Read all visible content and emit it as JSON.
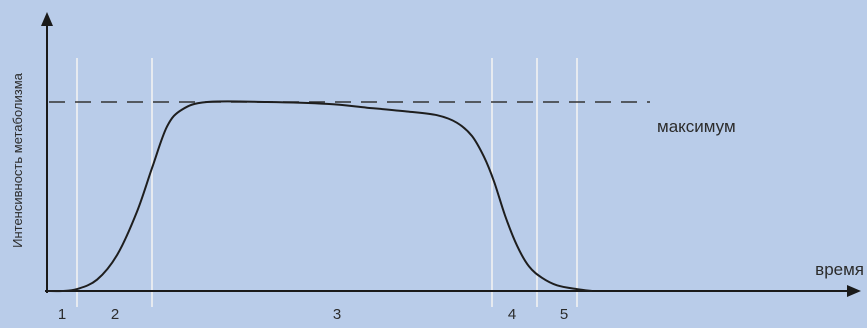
{
  "chart_data": {
    "type": "line",
    "title": "",
    "ylabel": "Интенсивность метаболизма",
    "xlabel": "время",
    "xlim": [
      0,
      560
    ],
    "ylim": [
      0,
      1
    ],
    "max_line": {
      "y": 1.0,
      "label": "максимум"
    },
    "phase_boundaries": [
      30,
      105,
      445,
      490,
      530
    ],
    "phases": [
      {
        "label": "1",
        "x": 15
      },
      {
        "label": "2",
        "x": 68
      },
      {
        "label": "3",
        "x": 290
      },
      {
        "label": "4",
        "x": 465
      },
      {
        "label": "5",
        "x": 517
      }
    ],
    "series": [
      {
        "values": [
          {
            "x": 0,
            "y": 0.0
          },
          {
            "x": 15,
            "y": 0.0
          },
          {
            "x": 30,
            "y": 0.01
          },
          {
            "x": 50,
            "y": 0.06
          },
          {
            "x": 70,
            "y": 0.19
          },
          {
            "x": 90,
            "y": 0.42
          },
          {
            "x": 105,
            "y": 0.65
          },
          {
            "x": 120,
            "y": 0.87
          },
          {
            "x": 135,
            "y": 0.96
          },
          {
            "x": 160,
            "y": 1.0
          },
          {
            "x": 220,
            "y": 1.0
          },
          {
            "x": 280,
            "y": 0.99
          },
          {
            "x": 320,
            "y": 0.97
          },
          {
            "x": 360,
            "y": 0.95
          },
          {
            "x": 390,
            "y": 0.93
          },
          {
            "x": 410,
            "y": 0.89
          },
          {
            "x": 425,
            "y": 0.82
          },
          {
            "x": 437,
            "y": 0.71
          },
          {
            "x": 447,
            "y": 0.58
          },
          {
            "x": 458,
            "y": 0.4
          },
          {
            "x": 470,
            "y": 0.24
          },
          {
            "x": 482,
            "y": 0.13
          },
          {
            "x": 495,
            "y": 0.07
          },
          {
            "x": 510,
            "y": 0.03
          },
          {
            "x": 530,
            "y": 0.01
          },
          {
            "x": 545,
            "y": 0.0
          }
        ]
      }
    ]
  }
}
